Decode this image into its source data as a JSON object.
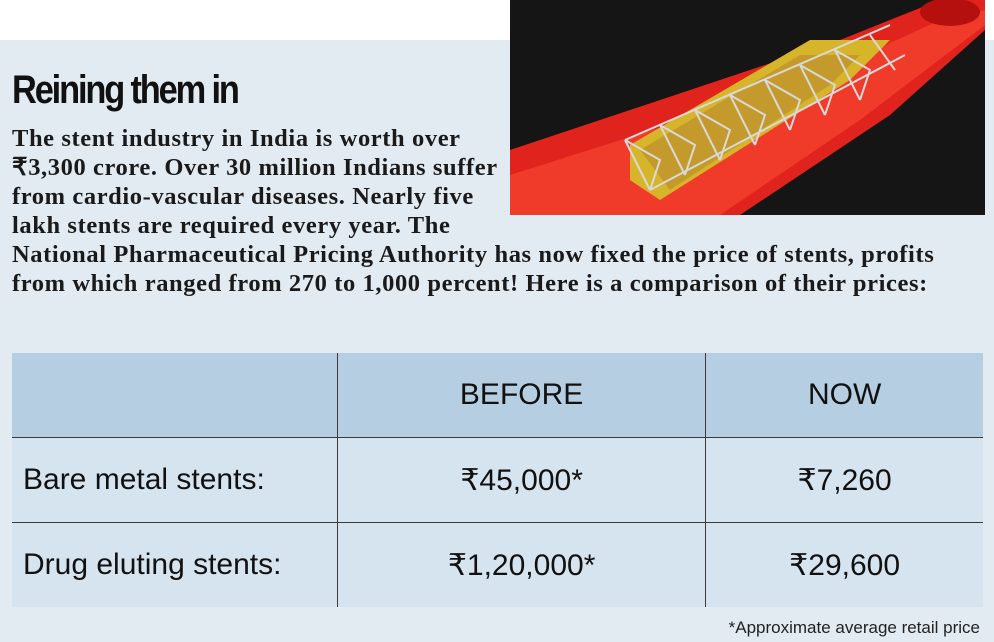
{
  "header": {
    "title": "Reining them in"
  },
  "intro": "The stent industry in India is worth over ₹3,300 crore. Over 30 million Indians suffer from cardio-vascular diseases. Nearly five lakh stents are required every year. The National Pharmaceutical Pricing Authority has now fixed the price of stents, profits from which ranged from 270 to 1,000 percent! Here is a comparison of their prices:",
  "table": {
    "columns": [
      "BEFORE",
      "NOW"
    ],
    "rows": [
      {
        "label": "Bare metal stents:",
        "cells": [
          "₹45,000*",
          "₹7,260"
        ]
      },
      {
        "label": "Drug eluting stents:",
        "cells": [
          "₹1,20,000*",
          "₹29,600"
        ]
      }
    ]
  },
  "footnote": "*Approximate average retail price"
}
